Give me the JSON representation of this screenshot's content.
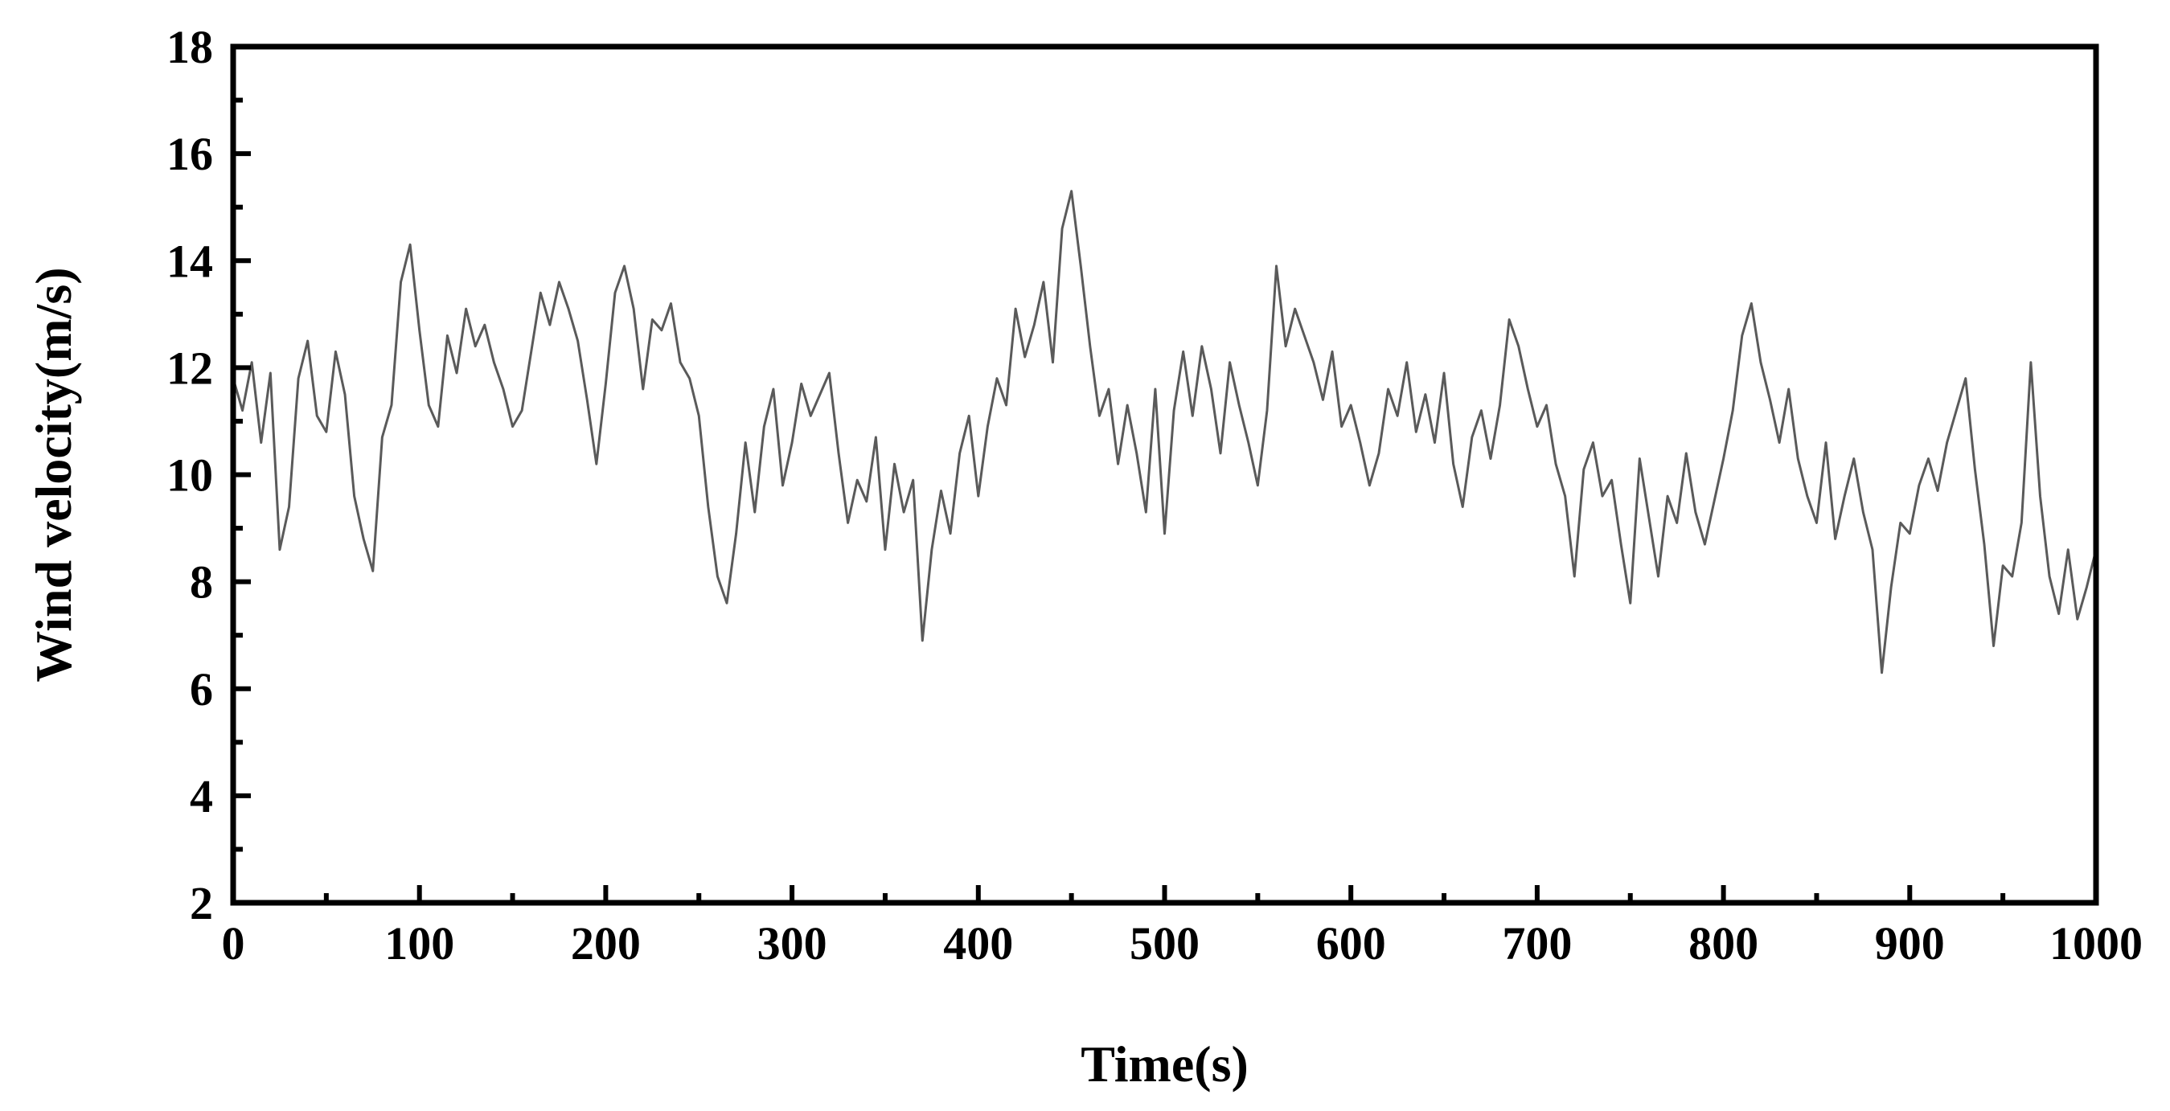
{
  "chart_data": {
    "type": "line",
    "title": "",
    "xlabel": "Time(s)",
    "ylabel": "Wind velocity(m/s)",
    "xlim": [
      0,
      1000
    ],
    "ylim": [
      2,
      18
    ],
    "x_ticks": [
      0,
      100,
      200,
      300,
      400,
      500,
      600,
      700,
      800,
      900,
      1000
    ],
    "x_tick_labels": [
      "0",
      "100",
      "200",
      "300",
      "400",
      "500",
      "600",
      "700",
      "800",
      "900",
      "1000"
    ],
    "y_ticks": [
      2,
      4,
      6,
      8,
      10,
      12,
      14,
      16,
      18
    ],
    "y_tick_labels": [
      "2",
      "4",
      "6",
      "8",
      "10",
      "12",
      "14",
      "16",
      "18"
    ],
    "grid": false,
    "legend": "none",
    "line_color": "#5a5a5a",
    "series": [
      {
        "x": [
          0,
          5,
          10,
          15,
          20,
          25,
          30,
          35,
          40,
          45,
          50,
          55,
          60,
          65,
          70,
          75,
          80,
          85,
          90,
          95,
          100,
          105,
          110,
          115,
          120,
          125,
          130,
          135,
          140,
          145,
          150,
          155,
          160,
          165,
          170,
          175,
          180,
          185,
          190,
          195,
          200,
          205,
          210,
          215,
          220,
          225,
          230,
          235,
          240,
          245,
          250,
          255,
          260,
          265,
          270,
          275,
          280,
          285,
          290,
          295,
          300,
          305,
          310,
          315,
          320,
          325,
          330,
          335,
          340,
          345,
          350,
          355,
          360,
          365,
          370,
          375,
          380,
          385,
          390,
          395,
          400,
          405,
          410,
          415,
          420,
          425,
          430,
          435,
          440,
          445,
          450,
          455,
          460,
          465,
          470,
          475,
          480,
          485,
          490,
          495,
          500,
          505,
          510,
          515,
          520,
          525,
          530,
          535,
          540,
          545,
          550,
          555,
          560,
          565,
          570,
          575,
          580,
          585,
          590,
          595,
          600,
          605,
          610,
          615,
          620,
          625,
          630,
          635,
          640,
          645,
          650,
          655,
          660,
          665,
          670,
          675,
          680,
          685,
          690,
          695,
          700,
          705,
          710,
          715,
          720,
          725,
          730,
          735,
          740,
          745,
          750,
          755,
          760,
          765,
          770,
          775,
          780,
          785,
          790,
          795,
          800,
          805,
          810,
          815,
          820,
          825,
          830,
          835,
          840,
          845,
          850,
          855,
          860,
          865,
          870,
          875,
          880,
          885,
          890,
          895,
          900,
          905,
          910,
          915,
          920,
          925,
          930,
          935,
          940,
          945,
          950,
          955,
          960,
          965,
          970,
          975,
          980,
          985,
          990,
          995,
          1000
        ],
        "values": [
          11.8,
          11.2,
          12.1,
          10.6,
          11.9,
          8.6,
          9.4,
          11.8,
          12.5,
          11.1,
          10.8,
          12.3,
          11.5,
          9.6,
          8.8,
          8.2,
          10.7,
          11.3,
          13.6,
          14.3,
          12.7,
          11.3,
          10.9,
          12.6,
          11.9,
          13.1,
          12.4,
          12.8,
          12.1,
          11.6,
          10.9,
          11.2,
          12.3,
          13.4,
          12.8,
          13.6,
          13.1,
          12.5,
          11.4,
          10.2,
          11.7,
          13.4,
          13.9,
          13.1,
          11.6,
          12.9,
          12.7,
          13.2,
          12.1,
          11.8,
          11.1,
          9.4,
          8.1,
          7.6,
          8.9,
          10.6,
          9.3,
          10.9,
          11.6,
          9.8,
          10.6,
          11.7,
          11.1,
          11.5,
          11.9,
          10.4,
          9.1,
          9.9,
          9.5,
          10.7,
          8.6,
          10.2,
          9.3,
          9.9,
          6.9,
          8.6,
          9.7,
          8.9,
          10.4,
          11.1,
          9.6,
          10.9,
          11.8,
          11.3,
          13.1,
          12.2,
          12.8,
          13.6,
          12.1,
          14.6,
          15.3,
          13.9,
          12.4,
          11.1,
          11.6,
          10.2,
          11.3,
          10.4,
          9.3,
          11.6,
          8.9,
          11.2,
          12.3,
          11.1,
          12.4,
          11.6,
          10.4,
          12.1,
          11.3,
          10.6,
          9.8,
          11.2,
          13.9,
          12.4,
          13.1,
          12.6,
          12.1,
          11.4,
          12.3,
          10.9,
          11.3,
          10.6,
          9.8,
          10.4,
          11.6,
          11.1,
          12.1,
          10.8,
          11.5,
          10.6,
          11.9,
          10.2,
          9.4,
          10.7,
          11.2,
          10.3,
          11.3,
          12.9,
          12.4,
          11.6,
          10.9,
          11.3,
          10.2,
          9.6,
          8.1,
          10.1,
          10.6,
          9.6,
          9.9,
          8.7,
          7.6,
          10.3,
          9.2,
          8.1,
          9.6,
          9.1,
          10.4,
          9.3,
          8.7,
          9.5,
          10.3,
          11.2,
          12.6,
          13.2,
          12.1,
          11.4,
          10.6,
          11.6,
          10.3,
          9.6,
          9.1,
          10.6,
          8.8,
          9.6,
          10.3,
          9.3,
          8.6,
          6.3,
          7.9,
          9.1,
          8.9,
          9.8,
          10.3,
          9.7,
          10.6,
          11.2,
          11.8,
          10.1,
          8.7,
          6.8,
          8.3,
          8.1,
          9.1,
          12.1,
          9.6,
          8.1,
          7.4,
          8.6,
          7.3,
          7.9,
          8.6
        ]
      }
    ]
  }
}
